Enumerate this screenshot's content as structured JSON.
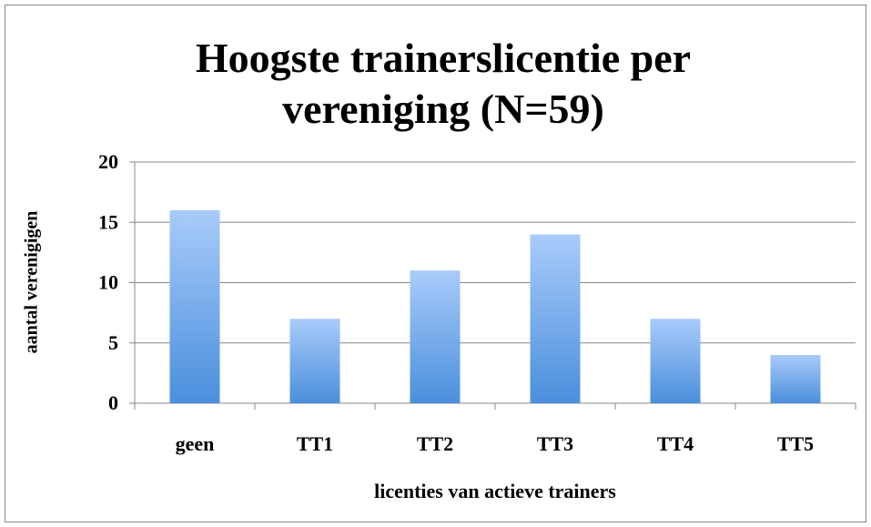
{
  "chart_data": {
    "type": "bar",
    "title": "Hoogste trainerslicentie per vereniging (N=59)",
    "categories": [
      "geen",
      "TT1",
      "TT2",
      "TT3",
      "TT4",
      "TT5"
    ],
    "values": [
      16,
      7,
      11,
      14,
      7,
      4
    ],
    "xlabel": "licenties van actieve trainers",
    "ylabel": "aantal verenigigen",
    "ylim": [
      0,
      20
    ],
    "yticks": [
      0,
      5,
      10,
      15,
      20
    ],
    "grid": true
  }
}
